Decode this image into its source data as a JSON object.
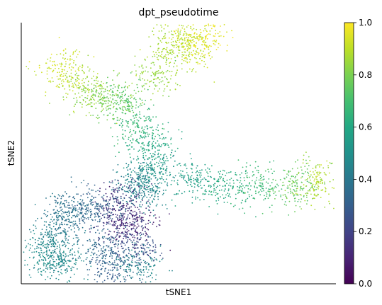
{
  "chart_data": {
    "type": "scatter",
    "title": "dpt_pseudotime",
    "xlabel": "tSNE1",
    "ylabel": "tSNE2",
    "xlim": [
      -52,
      56
    ],
    "ylim": [
      -40,
      40
    ],
    "grid": false,
    "colormap": "viridis",
    "colorbar": {
      "range": [
        0.0,
        1.0
      ],
      "ticks": [
        0.0,
        0.2,
        0.4,
        0.6,
        0.8,
        1.0
      ],
      "tick_labels": [
        "0.0",
        "0.2",
        "0.4",
        "0.6",
        "0.8",
        "1.0"
      ]
    },
    "series": [
      {
        "values": [
          {
            "x": -38,
            "y": 25,
            "c": 0.92
          },
          {
            "x": -30,
            "y": 20,
            "c": 0.86
          },
          {
            "x": -24,
            "y": 17,
            "c": 0.8
          },
          {
            "x": -16,
            "y": 16,
            "c": 0.74
          },
          {
            "x": -6,
            "y": 24,
            "c": 0.84
          },
          {
            "x": 0,
            "y": 33,
            "c": 0.88
          },
          {
            "x": 6,
            "y": 33,
            "c": 0.91
          },
          {
            "x": 10,
            "y": 35,
            "c": 0.96
          },
          {
            "x": -12,
            "y": 8,
            "c": 0.66
          },
          {
            "x": -7,
            "y": 2,
            "c": 0.6
          },
          {
            "x": -7,
            "y": -5,
            "c": 0.52
          },
          {
            "x": -9,
            "y": -9,
            "c": 0.47
          },
          {
            "x": -13,
            "y": -11,
            "c": 0.42
          },
          {
            "x": 6,
            "y": -8,
            "c": 0.56
          },
          {
            "x": 18,
            "y": -10,
            "c": 0.62
          },
          {
            "x": 30,
            "y": -10,
            "c": 0.68
          },
          {
            "x": 42,
            "y": -10,
            "c": 0.76
          },
          {
            "x": 50,
            "y": -9,
            "c": 0.88
          },
          {
            "x": -18,
            "y": -15,
            "c": 0.16
          },
          {
            "x": -14,
            "y": -22,
            "c": 0.08
          },
          {
            "x": -18,
            "y": -22,
            "c": 0.18
          },
          {
            "x": -12,
            "y": -29,
            "c": 0.24
          },
          {
            "x": -26,
            "y": -17,
            "c": 0.32
          },
          {
            "x": -34,
            "y": -17,
            "c": 0.36
          },
          {
            "x": -38,
            "y": -20,
            "c": 0.4
          },
          {
            "x": -41,
            "y": -27,
            "c": 0.44
          },
          {
            "x": -44,
            "y": -32,
            "c": 0.49
          },
          {
            "x": -38,
            "y": -33,
            "c": 0.47
          },
          {
            "x": -24,
            "y": -30,
            "c": 0.34
          },
          {
            "x": -20,
            "y": -35,
            "c": 0.3
          },
          {
            "x": -12,
            "y": -35,
            "c": 0.46
          }
        ]
      }
    ]
  }
}
